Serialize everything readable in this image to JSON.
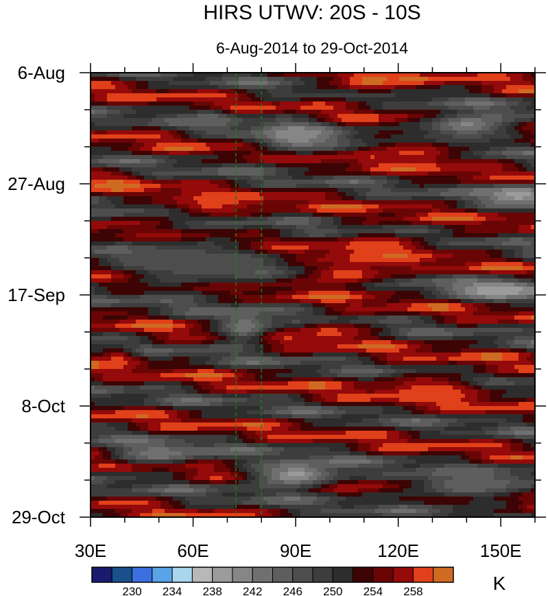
{
  "chart_data": {
    "type": "heatmap",
    "title": "HIRS UTWV: 20S - 10S",
    "subtitle": "6-Aug-2014 to 29-Oct-2014",
    "x_axis": {
      "range": [
        30,
        160
      ],
      "major_ticks": [
        30,
        60,
        90,
        120,
        150
      ],
      "tick_labels": [
        "30E",
        "60E",
        "90E",
        "120E",
        "150E"
      ],
      "minor_step": 10
    },
    "y_axis": {
      "range_days_from_start": [
        0,
        84
      ],
      "major_ticks_days": [
        0,
        21,
        42,
        63,
        84
      ],
      "tick_labels": [
        "6-Aug",
        "27-Aug",
        "17-Sep",
        "8-Oct",
        "29-Oct"
      ],
      "minor_step_days": 7,
      "inverted": true
    },
    "reference_lines_lon": [
      72.5,
      80
    ],
    "colorbar": {
      "unit": "K",
      "levels": [
        228,
        230,
        232,
        234,
        236,
        238,
        240,
        242,
        244,
        246,
        248,
        250,
        252,
        254,
        256,
        258,
        260
      ],
      "tick_labels": [
        "230",
        "234",
        "238",
        "242",
        "246",
        "250",
        "254",
        "258"
      ],
      "colors": [
        "#1a1a6e",
        "#1a4f8c",
        "#3b6fe0",
        "#5aa3e6",
        "#a9d6ec",
        "#b8b8b8",
        "#9b9b9b",
        "#868686",
        "#707070",
        "#5e5e5e",
        "#4d4d4d",
        "#3d3d3d",
        "#2d2d2d",
        "#3c0404",
        "#6a0505",
        "#950a0a",
        "#e0401a",
        "#cf6a23"
      ]
    },
    "field_blobs": [
      {
        "lon": 112,
        "day": 1.5,
        "rx": 12,
        "ry": 2.5,
        "value": 260.5
      },
      {
        "lon": 125,
        "day": 15,
        "rx": 14,
        "ry": 3,
        "value": 258.5
      },
      {
        "lon": 115,
        "day": 33,
        "rx": 16,
        "ry": 2.5,
        "value": 259.5
      },
      {
        "lon": 105,
        "day": 38,
        "rx": 14,
        "ry": 2.5,
        "value": 259.5
      },
      {
        "lon": 130,
        "day": 60,
        "rx": 15,
        "ry": 3,
        "value": 259.5
      },
      {
        "lon": 65,
        "day": 25,
        "rx": 14,
        "ry": 2.5,
        "value": 258.5
      },
      {
        "lon": 38,
        "day": 21,
        "rx": 7,
        "ry": 1.5,
        "value": 260.5
      },
      {
        "lon": 38,
        "day": 54,
        "rx": 6,
        "ry": 2,
        "value": 258.5
      },
      {
        "lon": 100,
        "day": 49,
        "rx": 12,
        "ry": 2,
        "value": 258.5
      },
      {
        "lon": 150,
        "day": 41,
        "rx": 16,
        "ry": 2,
        "value": 238.5
      },
      {
        "lon": 155,
        "day": 23,
        "rx": 10,
        "ry": 2,
        "value": 238.5
      },
      {
        "lon": 90,
        "day": 12,
        "rx": 12,
        "ry": 3,
        "value": 240.5
      },
      {
        "lon": 60,
        "day": 36,
        "rx": 22,
        "ry": 5,
        "value": 246.5
      },
      {
        "lon": 90,
        "day": 76,
        "rx": 14,
        "ry": 2.5,
        "value": 239.5
      },
      {
        "lon": 50,
        "day": 72,
        "rx": 14,
        "ry": 2,
        "value": 242.5
      },
      {
        "lon": 140,
        "day": 10,
        "rx": 14,
        "ry": 2.5,
        "value": 241.5
      },
      {
        "lon": 140,
        "day": 78,
        "rx": 18,
        "ry": 3,
        "value": 244.5
      },
      {
        "lon": 65,
        "day": 9,
        "rx": 7,
        "ry": 2,
        "value": 244.5
      },
      {
        "lon": 75,
        "day": 48,
        "rx": 8,
        "ry": 3,
        "value": 242.5
      }
    ]
  }
}
